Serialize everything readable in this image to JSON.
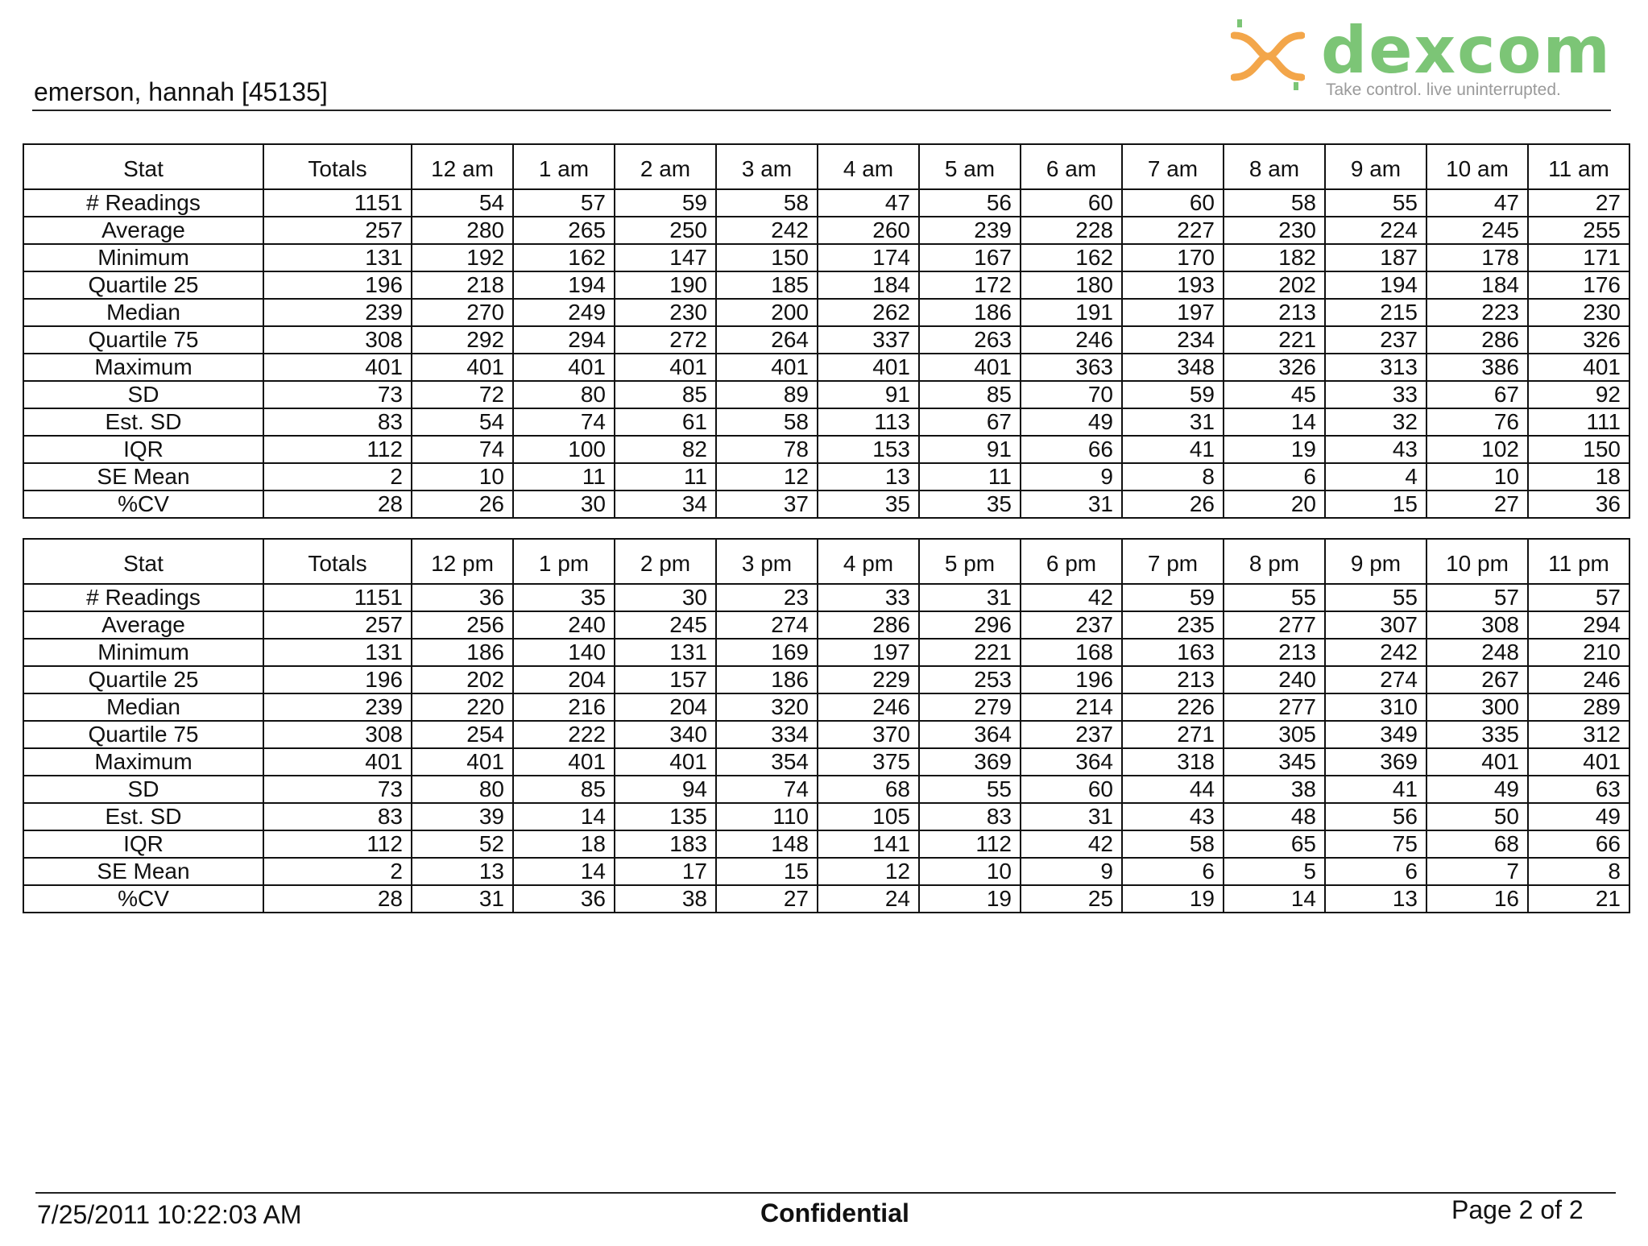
{
  "header": {
    "patient": "emerson, hannah [45135]",
    "logo_name": "dexcom",
    "logo_tagline": "Take control. live uninterrupted.",
    "logo_icon": "dexcom-x-mark-icon",
    "brand_colors": {
      "green": "#7cc576",
      "orange": "#f3a64a",
      "gray": "#9a9a9a"
    }
  },
  "table_am": {
    "columns": [
      "Stat",
      "Totals",
      "12 am",
      "1 am",
      "2 am",
      "3 am",
      "4 am",
      "5 am",
      "6 am",
      "7 am",
      "8 am",
      "9 am",
      "10 am",
      "11 am"
    ],
    "rows": [
      [
        "# Readings",
        "1151",
        "54",
        "57",
        "59",
        "58",
        "47",
        "56",
        "60",
        "60",
        "58",
        "55",
        "47",
        "27"
      ],
      [
        "Average",
        "257",
        "280",
        "265",
        "250",
        "242",
        "260",
        "239",
        "228",
        "227",
        "230",
        "224",
        "245",
        "255"
      ],
      [
        "Minimum",
        "131",
        "192",
        "162",
        "147",
        "150",
        "174",
        "167",
        "162",
        "170",
        "182",
        "187",
        "178",
        "171"
      ],
      [
        "Quartile 25",
        "196",
        "218",
        "194",
        "190",
        "185",
        "184",
        "172",
        "180",
        "193",
        "202",
        "194",
        "184",
        "176"
      ],
      [
        "Median",
        "239",
        "270",
        "249",
        "230",
        "200",
        "262",
        "186",
        "191",
        "197",
        "213",
        "215",
        "223",
        "230"
      ],
      [
        "Quartile 75",
        "308",
        "292",
        "294",
        "272",
        "264",
        "337",
        "263",
        "246",
        "234",
        "221",
        "237",
        "286",
        "326"
      ],
      [
        "Maximum",
        "401",
        "401",
        "401",
        "401",
        "401",
        "401",
        "401",
        "363",
        "348",
        "326",
        "313",
        "386",
        "401"
      ],
      [
        "SD",
        "73",
        "72",
        "80",
        "85",
        "89",
        "91",
        "85",
        "70",
        "59",
        "45",
        "33",
        "67",
        "92"
      ],
      [
        "Est. SD",
        "83",
        "54",
        "74",
        "61",
        "58",
        "113",
        "67",
        "49",
        "31",
        "14",
        "32",
        "76",
        "111"
      ],
      [
        "IQR",
        "112",
        "74",
        "100",
        "82",
        "78",
        "153",
        "91",
        "66",
        "41",
        "19",
        "43",
        "102",
        "150"
      ],
      [
        "SE Mean",
        "2",
        "10",
        "11",
        "11",
        "12",
        "13",
        "11",
        "9",
        "8",
        "6",
        "4",
        "10",
        "18"
      ],
      [
        "%CV",
        "28",
        "26",
        "30",
        "34",
        "37",
        "35",
        "35",
        "31",
        "26",
        "20",
        "15",
        "27",
        "36"
      ]
    ]
  },
  "table_pm": {
    "columns": [
      "Stat",
      "Totals",
      "12 pm",
      "1 pm",
      "2 pm",
      "3 pm",
      "4 pm",
      "5 pm",
      "6 pm",
      "7 pm",
      "8 pm",
      "9 pm",
      "10 pm",
      "11 pm"
    ],
    "rows": [
      [
        "# Readings",
        "1151",
        "36",
        "35",
        "30",
        "23",
        "33",
        "31",
        "42",
        "59",
        "55",
        "55",
        "57",
        "57"
      ],
      [
        "Average",
        "257",
        "256",
        "240",
        "245",
        "274",
        "286",
        "296",
        "237",
        "235",
        "277",
        "307",
        "308",
        "294"
      ],
      [
        "Minimum",
        "131",
        "186",
        "140",
        "131",
        "169",
        "197",
        "221",
        "168",
        "163",
        "213",
        "242",
        "248",
        "210"
      ],
      [
        "Quartile 25",
        "196",
        "202",
        "204",
        "157",
        "186",
        "229",
        "253",
        "196",
        "213",
        "240",
        "274",
        "267",
        "246"
      ],
      [
        "Median",
        "239",
        "220",
        "216",
        "204",
        "320",
        "246",
        "279",
        "214",
        "226",
        "277",
        "310",
        "300",
        "289"
      ],
      [
        "Quartile 75",
        "308",
        "254",
        "222",
        "340",
        "334",
        "370",
        "364",
        "237",
        "271",
        "305",
        "349",
        "335",
        "312"
      ],
      [
        "Maximum",
        "401",
        "401",
        "401",
        "401",
        "354",
        "375",
        "369",
        "364",
        "318",
        "345",
        "369",
        "401",
        "401"
      ],
      [
        "SD",
        "73",
        "80",
        "85",
        "94",
        "74",
        "68",
        "55",
        "60",
        "44",
        "38",
        "41",
        "49",
        "63"
      ],
      [
        "Est. SD",
        "83",
        "39",
        "14",
        "135",
        "110",
        "105",
        "83",
        "31",
        "43",
        "48",
        "56",
        "50",
        "49"
      ],
      [
        "IQR",
        "112",
        "52",
        "18",
        "183",
        "148",
        "141",
        "112",
        "42",
        "58",
        "65",
        "75",
        "68",
        "66"
      ],
      [
        "SE Mean",
        "2",
        "13",
        "14",
        "17",
        "15",
        "12",
        "10",
        "9",
        "6",
        "5",
        "6",
        "7",
        "8"
      ],
      [
        "%CV",
        "28",
        "31",
        "36",
        "38",
        "27",
        "24",
        "19",
        "25",
        "19",
        "14",
        "13",
        "16",
        "21"
      ]
    ]
  },
  "footer": {
    "timestamp": "7/25/2011 10:22:03 AM",
    "classification": "Confidential",
    "page": "Page 2 of 2"
  }
}
